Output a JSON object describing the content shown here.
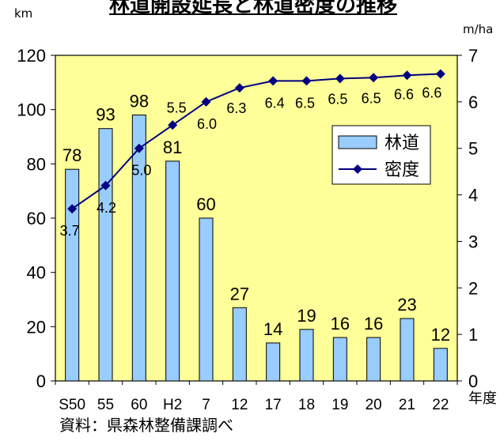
{
  "header": {
    "title": "林道開設延長と林道密度の推移",
    "left_unit": "km",
    "right_unit": "m/ha"
  },
  "source_note": "資料：県森林整備課調べ",
  "colors": {
    "plot_background": "#ffff99",
    "bar_fill": "#99ccff",
    "line": "#000080",
    "marker": "#000080"
  },
  "chart_data": {
    "type": "bar",
    "categories": [
      "S50",
      "55",
      "60",
      "H2",
      "7",
      "12",
      "17",
      "18",
      "19",
      "20",
      "21",
      "22"
    ],
    "xlabel": "年度",
    "series": [
      {
        "name": "林道",
        "type": "bar",
        "axis": "left",
        "values": [
          78,
          93,
          98,
          81,
          60,
          27,
          14,
          19,
          16,
          16,
          23,
          12
        ],
        "labels": [
          "78",
          "93",
          "98",
          "81",
          "60",
          "27",
          "14",
          "19",
          "16",
          "16",
          "23",
          "12"
        ]
      },
      {
        "name": "密度",
        "type": "line",
        "axis": "right",
        "marker": "diamond",
        "values": [
          3.7,
          4.2,
          5.0,
          5.5,
          6.0,
          6.3,
          6.45,
          6.45,
          6.5,
          6.52,
          6.57,
          6.6
        ],
        "labels": [
          "3.7",
          "4.2",
          "5.0",
          "5.5",
          "6.0",
          "6.3",
          "6.4",
          "6.5",
          "6.5",
          "6.5",
          "6.6",
          "6.6"
        ]
      }
    ],
    "y_left": {
      "range": [
        0,
        120
      ],
      "ticks": [
        "0",
        "20",
        "40",
        "60",
        "80",
        "100",
        "120"
      ]
    },
    "y_right": {
      "range": [
        0,
        7
      ],
      "ticks": [
        "0",
        "1",
        "2",
        "3",
        "4",
        "5",
        "6",
        "7"
      ]
    },
    "grid": false,
    "legend": {
      "position": "right-middle",
      "items": [
        "林道",
        "密度"
      ]
    }
  }
}
